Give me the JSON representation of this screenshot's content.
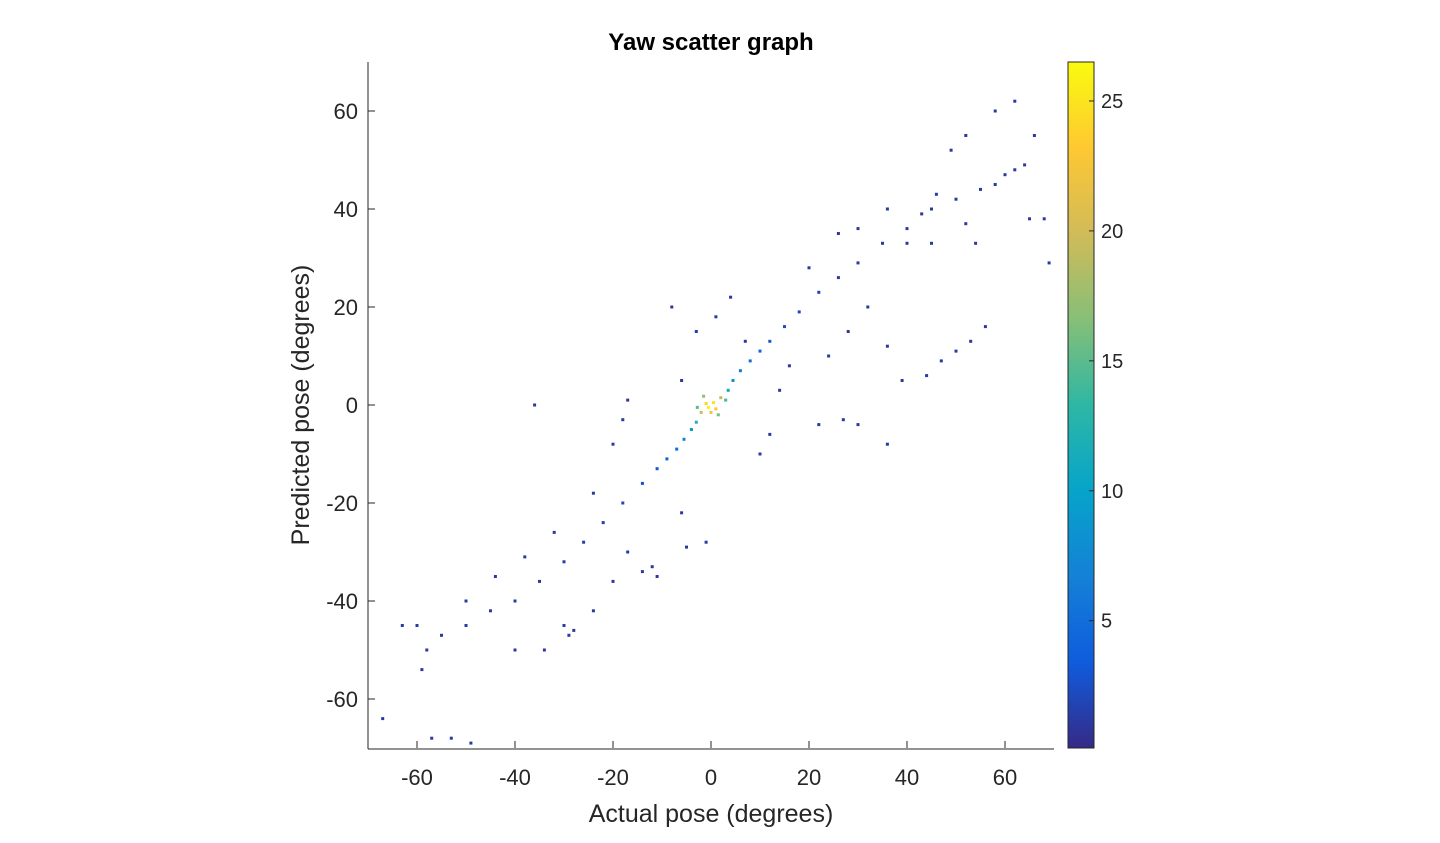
{
  "chart_data": {
    "type": "scatter",
    "title": "Yaw scatter graph",
    "xlabel": "Actual pose (degrees)",
    "ylabel": "Predicted pose (degrees)",
    "xlim": [
      -70,
      70
    ],
    "ylim": [
      -70,
      70
    ],
    "xticks": [
      "-60",
      "-40",
      "-20",
      "0",
      "20",
      "40",
      "60"
    ],
    "yticks": [
      "60",
      "40",
      "20",
      "0",
      "-20",
      "-40",
      "-60"
    ],
    "grid": false,
    "marker": "small square",
    "color_encoding": "point density",
    "colorbar": {
      "ticks": [
        "25",
        "20",
        "15",
        "10",
        "5"
      ],
      "range": [
        0.1,
        26.5
      ],
      "colormap": "parula",
      "colors": [
        "#352a87",
        "#0f5cdd",
        "#1481d6",
        "#06a4ca",
        "#2eb7a4",
        "#87bf77",
        "#d1bb59",
        "#fec832",
        "#f9fb0e"
      ]
    },
    "series": [
      {
        "points": [
          [
            -0.5,
            -0.5,
            26
          ],
          [
            0.5,
            0.5,
            25
          ],
          [
            -1,
            0.3,
            24
          ],
          [
            1,
            -0.8,
            23
          ],
          [
            0,
            -1.5,
            22
          ],
          [
            -2,
            -1.5,
            20
          ],
          [
            2,
            1.5,
            19
          ],
          [
            -1.5,
            1.8,
            17
          ],
          [
            1.5,
            -2,
            16
          ],
          [
            -2.8,
            -0.5,
            15
          ],
          [
            3,
            1,
            14
          ],
          [
            -3,
            -3.5,
            12
          ],
          [
            3.5,
            3,
            11
          ],
          [
            -4,
            -5,
            9
          ],
          [
            4.5,
            5,
            8
          ],
          [
            -5.5,
            -7,
            7
          ],
          [
            6,
            7,
            6
          ],
          [
            -7,
            -9,
            5
          ],
          [
            8,
            9,
            5
          ],
          [
            -9,
            -11,
            4
          ],
          [
            10,
            11,
            4
          ],
          [
            -11,
            -13,
            3
          ],
          [
            12,
            13,
            3
          ],
          [
            -14,
            -16,
            2.5
          ],
          [
            15,
            16,
            2.5
          ],
          [
            -18,
            -20,
            2
          ],
          [
            18,
            19,
            2
          ],
          [
            -22,
            -24,
            1.5
          ],
          [
            22,
            23,
            1.5
          ],
          [
            -26,
            -28,
            1.2
          ],
          [
            26,
            26,
            1.2
          ],
          [
            -30,
            -32,
            1
          ],
          [
            30,
            29,
            1
          ],
          [
            -35,
            -36,
            1
          ],
          [
            35,
            33,
            1
          ],
          [
            -40,
            -40,
            1
          ],
          [
            40,
            36,
            1
          ],
          [
            -45,
            -42,
            1
          ],
          [
            45,
            40,
            1
          ],
          [
            -50,
            -45,
            1
          ],
          [
            50,
            42,
            1
          ],
          [
            -55,
            -47,
            1
          ],
          [
            55,
            44,
            1
          ],
          [
            -58,
            -50,
            1
          ],
          [
            60,
            47,
            1
          ],
          [
            -59,
            -54,
            1
          ],
          [
            64,
            49,
            1
          ],
          [
            -67,
            -64,
            1
          ],
          [
            -63,
            -45,
            1
          ],
          [
            -57,
            -68,
            1
          ],
          [
            -53,
            -68,
            1
          ],
          [
            -49,
            -69,
            1
          ],
          [
            -36,
            0,
            1
          ],
          [
            -17,
            1,
            1
          ],
          [
            -6,
            -22,
            1
          ],
          [
            -5,
            -29,
            1
          ],
          [
            -1,
            -28,
            1
          ],
          [
            1,
            18,
            1
          ],
          [
            -11,
            -35,
            1
          ],
          [
            -14,
            -34,
            1
          ],
          [
            -12,
            -33,
            1
          ],
          [
            -17,
            -30,
            1
          ],
          [
            -29,
            -47,
            1
          ],
          [
            -28,
            -46,
            1
          ],
          [
            -60,
            -45,
            1
          ],
          [
            22,
            -4,
            1
          ],
          [
            27,
            -3,
            1
          ],
          [
            30,
            -4,
            1
          ],
          [
            36,
            -8,
            1
          ],
          [
            12,
            -6,
            1
          ],
          [
            36,
            12,
            1
          ],
          [
            39,
            5,
            1
          ],
          [
            44,
            6,
            1
          ],
          [
            47,
            9,
            1
          ],
          [
            50,
            11,
            1
          ],
          [
            56,
            16,
            1
          ],
          [
            53,
            13,
            1
          ],
          [
            43,
            39,
            1
          ],
          [
            46,
            43,
            1
          ],
          [
            49,
            52,
            1
          ],
          [
            52,
            55,
            1
          ],
          [
            58,
            60,
            1
          ],
          [
            62,
            62,
            1
          ],
          [
            66,
            55,
            1
          ],
          [
            68,
            38,
            1
          ],
          [
            69,
            29,
            1
          ],
          [
            65,
            38,
            1
          ],
          [
            54,
            33,
            1
          ],
          [
            62,
            48,
            1
          ],
          [
            58,
            45,
            1
          ],
          [
            -8,
            20,
            1
          ],
          [
            -6,
            5,
            1
          ],
          [
            -3,
            15,
            1
          ],
          [
            4,
            22,
            1
          ],
          [
            7,
            13,
            1
          ],
          [
            14,
            3,
            1
          ],
          [
            -18,
            -3,
            1
          ],
          [
            -20,
            -8,
            1
          ],
          [
            -24,
            -18,
            1
          ],
          [
            -32,
            -26,
            1
          ],
          [
            -38,
            -31,
            1
          ],
          [
            -44,
            -35,
            1
          ],
          [
            -50,
            -40,
            1
          ],
          [
            -40,
            -50,
            1
          ],
          [
            -34,
            -50,
            1
          ],
          [
            -30,
            -45,
            1
          ],
          [
            -24,
            -42,
            1
          ],
          [
            -20,
            -36,
            1
          ],
          [
            10,
            -10,
            1
          ],
          [
            16,
            8,
            1
          ],
          [
            24,
            10,
            1
          ],
          [
            28,
            15,
            1
          ],
          [
            32,
            20,
            1
          ],
          [
            20,
            28,
            1
          ],
          [
            26,
            35,
            1
          ],
          [
            30,
            36,
            1
          ],
          [
            36,
            40,
            1
          ],
          [
            40,
            33,
            1
          ],
          [
            45,
            33,
            1
          ],
          [
            52,
            37,
            1
          ]
        ]
      }
    ]
  }
}
